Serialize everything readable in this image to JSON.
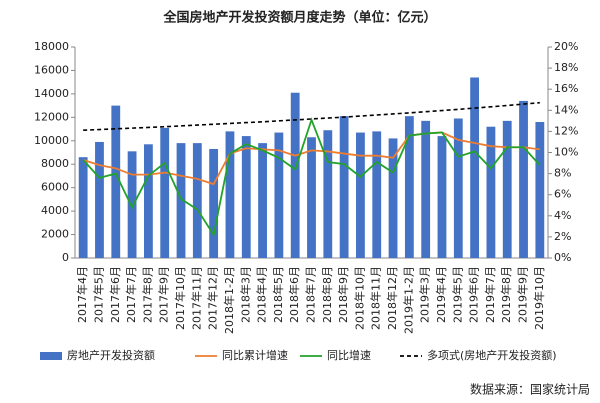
{
  "chart_data": {
    "type": "bar_line",
    "title": "全国房地产开发投资额月度走势（单位：亿元）",
    "categories": [
      "2017年4月",
      "2017年5月",
      "2017年6月",
      "2017年7月",
      "2017年8月",
      "2017年9月",
      "2017年10月",
      "2017年11月",
      "2017年12月",
      "2018年1-2月",
      "2018年3月",
      "2018年4月",
      "2018年5月",
      "2018年6月",
      "2018年7月",
      "2018年8月",
      "2018年9月",
      "2018年10月",
      "2018年11月",
      "2018年12月",
      "2019年1-2月",
      "2019年3月",
      "2019年4月",
      "2019年5月",
      "2019年6月",
      "2019年7月",
      "2019年8月",
      "2019年9月",
      "2019年10月"
    ],
    "series": [
      {
        "name": "房地产开发投资额",
        "type": "bar",
        "color": "#4472c4",
        "values": [
          8600,
          9900,
          13000,
          9100,
          9700,
          11100,
          9800,
          9800,
          9300,
          10800,
          10400,
          9800,
          10700,
          14100,
          10300,
          10900,
          12100,
          10700,
          10800,
          10200,
          12100,
          11700,
          10400,
          11900,
          15400,
          11200,
          11700,
          13400,
          11600
        ]
      },
      {
        "name": "同比累计增速",
        "type": "line",
        "axis": "y2",
        "color": "#ed7d31",
        "values": [
          9.3,
          8.8,
          8.5,
          7.9,
          7.9,
          8.1,
          7.8,
          7.5,
          7.0,
          9.9,
          10.4,
          10.3,
          10.2,
          9.7,
          10.2,
          10.1,
          9.9,
          9.7,
          9.7,
          9.5,
          11.6,
          11.8,
          11.9,
          11.2,
          10.9,
          10.6,
          10.5,
          10.5,
          10.3
        ]
      },
      {
        "name": "同比增速",
        "type": "line",
        "axis": "y2",
        "color": "#22a32a",
        "values": [
          9.3,
          7.6,
          8.0,
          4.8,
          7.8,
          9.0,
          5.6,
          4.6,
          2.2,
          9.9,
          10.8,
          10.2,
          9.5,
          8.4,
          13.1,
          9.1,
          8.9,
          7.7,
          9.1,
          8.1,
          11.6,
          11.8,
          11.9,
          9.6,
          10.1,
          8.5,
          10.5,
          10.5,
          8.8
        ]
      },
      {
        "name": "多项式(房地产开发投资额)",
        "type": "trend",
        "color": "#000000",
        "values": [
          10900,
          10960,
          11020,
          11080,
          11140,
          11200,
          11270,
          11340,
          11410,
          11480,
          11550,
          11620,
          11700,
          11780,
          11860,
          11940,
          12020,
          12110,
          12200,
          12290,
          12380,
          12480,
          12580,
          12680,
          12790,
          12900,
          13010,
          13130,
          13250
        ]
      }
    ],
    "ylim": [
      0,
      18000
    ],
    "yticks": [
      0,
      2000,
      4000,
      6000,
      8000,
      10000,
      12000,
      14000,
      16000,
      18000
    ],
    "y2lim": [
      0,
      20
    ],
    "y2ticks": [
      {
        "value": 0,
        "label": "0%"
      },
      {
        "value": 2,
        "label": "2%"
      },
      {
        "value": 4,
        "label": "4%"
      },
      {
        "value": 6,
        "label": "6%"
      },
      {
        "value": 8,
        "label": "8%"
      },
      {
        "value": 10,
        "label": "10%"
      },
      {
        "value": 12,
        "label": "12%"
      },
      {
        "value": 14,
        "label": "14%"
      },
      {
        "value": 16,
        "label": "16%"
      },
      {
        "value": 18,
        "label": "18%"
      },
      {
        "value": 20,
        "label": "20%"
      }
    ],
    "source": "数据来源：国家统计局"
  }
}
